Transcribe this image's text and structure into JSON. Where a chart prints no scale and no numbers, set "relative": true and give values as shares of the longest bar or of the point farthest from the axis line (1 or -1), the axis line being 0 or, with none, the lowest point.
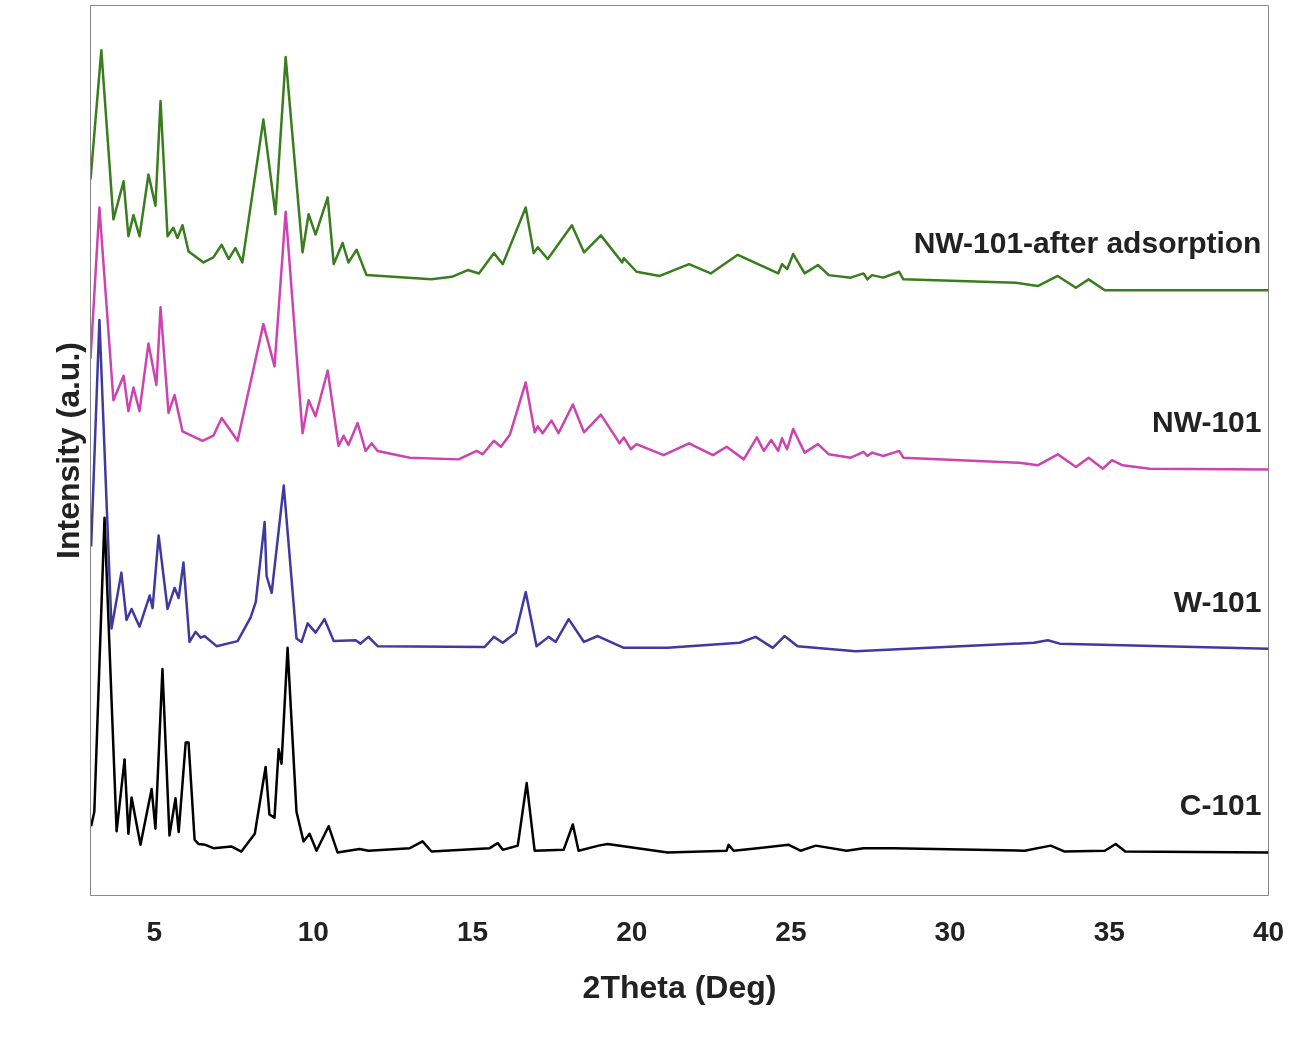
{
  "chart_data": {
    "type": "line",
    "xlabel": "2Theta (Deg)",
    "ylabel": "Intensity (a.u.)",
    "relative": true,
    "xlim": [
      3,
      40
    ],
    "xticks": [
      5,
      10,
      15,
      20,
      25,
      30,
      35,
      40
    ],
    "line_style": "solid",
    "marker": "none",
    "series": [
      {
        "name": "NW-101-after adsorption",
        "color": "#3a7d1e",
        "x": [
          3.0,
          3.34,
          3.72,
          4.04,
          4.19,
          4.35,
          4.54,
          4.82,
          5.04,
          5.2,
          5.42,
          5.6,
          5.73,
          5.89,
          6.08,
          6.55,
          6.86,
          7.12,
          7.34,
          7.55,
          7.77,
          8.43,
          8.81,
          9.13,
          9.66,
          9.85,
          10.07,
          10.45,
          10.64,
          10.92,
          11.1,
          11.36,
          11.67,
          13.7,
          14.35,
          14.85,
          15.2,
          15.67,
          15.95,
          16.67,
          16.92,
          17.05,
          17.36,
          18.12,
          18.5,
          19.03,
          19.7,
          19.75,
          20.15,
          20.88,
          21.8,
          22.48,
          23.33,
          24.6,
          24.72,
          24.88,
          25.07,
          25.43,
          25.85,
          26.19,
          26.88,
          27.28,
          27.4,
          27.55,
          27.9,
          28.4,
          28.53,
          32.05,
          32.75,
          33.38,
          33.95,
          34.35,
          34.86,
          40.0
        ],
        "values": [
          0.847,
          1.0,
          0.8,
          0.845,
          0.78,
          0.805,
          0.78,
          0.853,
          0.816,
          0.94,
          0.78,
          0.79,
          0.778,
          0.793,
          0.762,
          0.749,
          0.755,
          0.77,
          0.753,
          0.766,
          0.749,
          0.918,
          0.806,
          0.992,
          0.761,
          0.806,
          0.782,
          0.826,
          0.747,
          0.772,
          0.749,
          0.764,
          0.734,
          0.729,
          0.732,
          0.74,
          0.736,
          0.76,
          0.747,
          0.814,
          0.76,
          0.767,
          0.753,
          0.793,
          0.761,
          0.781,
          0.749,
          0.754,
          0.738,
          0.733,
          0.747,
          0.736,
          0.758,
          0.736,
          0.747,
          0.741,
          0.759,
          0.736,
          0.746,
          0.734,
          0.731,
          0.736,
          0.729,
          0.734,
          0.731,
          0.738,
          0.729,
          0.725,
          0.721,
          0.733,
          0.719,
          0.729,
          0.716,
          0.716
        ]
      },
      {
        "name": "NW-101",
        "color": "#cc44b0",
        "x": [
          3.0,
          3.28,
          3.72,
          4.04,
          4.19,
          4.35,
          4.54,
          4.82,
          5.07,
          5.2,
          5.45,
          5.64,
          5.89,
          6.52,
          6.86,
          7.12,
          7.62,
          8.43,
          8.78,
          9.13,
          9.66,
          9.85,
          10.07,
          10.45,
          10.79,
          10.95,
          11.1,
          11.39,
          11.64,
          11.83,
          12.02,
          13.03,
          14.56,
          15.13,
          15.32,
          15.67,
          15.89,
          16.17,
          16.67,
          16.95,
          17.05,
          17.2,
          17.48,
          17.7,
          18.15,
          18.5,
          19.03,
          19.62,
          19.75,
          19.97,
          20.15,
          21.0,
          21.8,
          22.55,
          22.98,
          23.52,
          23.93,
          24.15,
          24.38,
          24.6,
          24.72,
          24.88,
          25.07,
          25.43,
          25.85,
          26.19,
          26.88,
          27.28,
          27.4,
          27.55,
          27.9,
          28.4,
          28.53,
          32.18,
          32.75,
          33.38,
          33.95,
          34.35,
          34.8,
          35.08,
          35.42,
          36.27,
          40.0
        ],
        "values": [
          0.635,
          0.814,
          0.586,
          0.615,
          0.573,
          0.601,
          0.573,
          0.653,
          0.604,
          0.696,
          0.571,
          0.592,
          0.549,
          0.538,
          0.544,
          0.565,
          0.538,
          0.676,
          0.626,
          0.809,
          0.547,
          0.586,
          0.567,
          0.621,
          0.532,
          0.544,
          0.533,
          0.559,
          0.526,
          0.535,
          0.526,
          0.518,
          0.516,
          0.526,
          0.522,
          0.538,
          0.531,
          0.545,
          0.607,
          0.548,
          0.555,
          0.547,
          0.562,
          0.547,
          0.581,
          0.548,
          0.569,
          0.535,
          0.542,
          0.528,
          0.534,
          0.521,
          0.535,
          0.521,
          0.531,
          0.516,
          0.542,
          0.526,
          0.539,
          0.526,
          0.541,
          0.528,
          0.552,
          0.524,
          0.534,
          0.522,
          0.518,
          0.525,
          0.52,
          0.524,
          0.52,
          0.526,
          0.518,
          0.512,
          0.509,
          0.522,
          0.507,
          0.518,
          0.505,
          0.515,
          0.509,
          0.505,
          0.504
        ]
      },
      {
        "name": "W-101",
        "color": "#3f3aa0",
        "x": [
          3.02,
          3.28,
          3.66,
          3.97,
          4.13,
          4.29,
          4.54,
          4.86,
          4.95,
          5.14,
          5.42,
          5.64,
          5.77,
          5.92,
          6.11,
          6.3,
          6.46,
          6.58,
          6.96,
          7.62,
          8.03,
          8.19,
          8.47,
          8.53,
          8.69,
          9.07,
          9.47,
          9.63,
          9.82,
          10.07,
          10.35,
          10.64,
          11.33,
          11.48,
          11.73,
          12.02,
          15.38,
          15.67,
          15.95,
          16.36,
          16.67,
          17.01,
          17.39,
          17.61,
          18.02,
          18.5,
          18.93,
          19.75,
          21.13,
          23.39,
          23.89,
          24.43,
          24.8,
          25.21,
          27.03,
          32.63,
          33.07,
          33.44,
          40.0
        ],
        "values": [
          0.413,
          0.681,
          0.316,
          0.382,
          0.326,
          0.339,
          0.318,
          0.355,
          0.34,
          0.426,
          0.339,
          0.364,
          0.352,
          0.394,
          0.3,
          0.312,
          0.305,
          0.307,
          0.295,
          0.301,
          0.329,
          0.347,
          0.442,
          0.378,
          0.358,
          0.485,
          0.304,
          0.3,
          0.322,
          0.311,
          0.327,
          0.301,
          0.302,
          0.298,
          0.306,
          0.295,
          0.294,
          0.306,
          0.299,
          0.311,
          0.359,
          0.295,
          0.306,
          0.3,
          0.327,
          0.3,
          0.307,
          0.293,
          0.293,
          0.299,
          0.306,
          0.293,
          0.307,
          0.295,
          0.289,
          0.299,
          0.302,
          0.298,
          0.292
        ]
      },
      {
        "name": "C-101",
        "color": "#000000",
        "x": [
          3.02,
          3.12,
          3.44,
          3.82,
          4.07,
          4.19,
          4.29,
          4.57,
          4.92,
          5.04,
          5.26,
          5.48,
          5.67,
          5.77,
          5.99,
          6.08,
          6.27,
          6.39,
          6.61,
          6.86,
          7.42,
          7.74,
          8.16,
          8.5,
          8.62,
          8.78,
          8.91,
          9.0,
          9.19,
          9.47,
          9.69,
          9.88,
          10.1,
          10.48,
          10.76,
          11.45,
          11.73,
          13.03,
          13.43,
          13.71,
          15.54,
          15.79,
          15.95,
          16.42,
          16.7,
          16.95,
          17.86,
          18.15,
          18.33,
          18.96,
          19.24,
          21.13,
          22.98,
          23.04,
          23.2,
          23.95,
          24.93,
          25.3,
          25.78,
          26.75,
          27.28,
          28.2,
          32.34,
          33.16,
          33.6,
          34.86,
          35.2,
          35.5,
          40.0
        ],
        "values": [
          0.082,
          0.099,
          0.447,
          0.076,
          0.161,
          0.073,
          0.116,
          0.06,
          0.126,
          0.079,
          0.268,
          0.071,
          0.115,
          0.075,
          0.181,
          0.181,
          0.066,
          0.061,
          0.06,
          0.056,
          0.058,
          0.052,
          0.073,
          0.152,
          0.096,
          0.092,
          0.173,
          0.156,
          0.293,
          0.099,
          0.064,
          0.073,
          0.053,
          0.082,
          0.051,
          0.055,
          0.053,
          0.056,
          0.064,
          0.052,
          0.056,
          0.062,
          0.054,
          0.059,
          0.133,
          0.053,
          0.054,
          0.084,
          0.053,
          0.059,
          0.061,
          0.051,
          0.053,
          0.06,
          0.053,
          0.056,
          0.06,
          0.053,
          0.059,
          0.053,
          0.056,
          0.056,
          0.053,
          0.059,
          0.052,
          0.053,
          0.061,
          0.052,
          0.051
        ]
      }
    ]
  }
}
